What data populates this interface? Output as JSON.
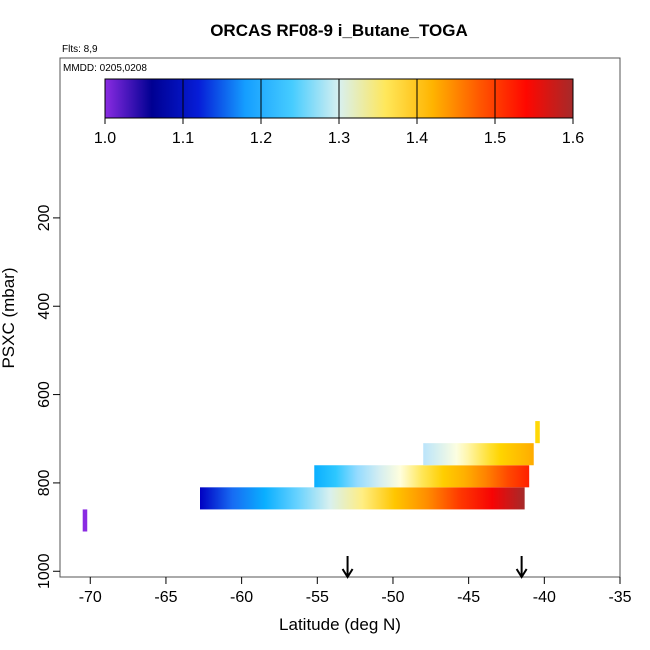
{
  "chart_data": {
    "type": "heatmap",
    "title": "ORCAS RF08-9 i_Butane_TOGA",
    "subtitle": "Flts: 8,9",
    "annotation": "MMDD: 0205,0208",
    "xlabel": "Latitude (deg N)",
    "ylabel": "PSXC (mbar)",
    "xlim": [
      -72,
      -35
    ],
    "ylim": [
      1013,
      -162
    ],
    "xticks": [
      -70,
      -65,
      -60,
      -55,
      -50,
      -45,
      -40,
      -35
    ],
    "yticks": [
      200,
      400,
      600,
      800,
      1000
    ],
    "colorbar": {
      "range": [
        1.0,
        1.6
      ],
      "ticks": [
        "1.0",
        "1.1",
        "1.2",
        "1.3",
        "1.4",
        "1.5",
        "1.6"
      ],
      "colors": [
        "#8a2be2",
        "#00008b",
        "#0000cd",
        "#1e90ff",
        "#00bfff",
        "#b0e0ff",
        "#ffffe0",
        "#ffd700",
        "#ffa500",
        "#ff4500",
        "#ff0000",
        "#a52a2a"
      ]
    },
    "segments": [
      {
        "lat": [
          -62.75,
          -41.3
        ],
        "p": [
          810,
          860
        ],
        "value_range": [
          1.1,
          1.6
        ]
      },
      {
        "lat": [
          -55.2,
          -41.0
        ],
        "p": [
          760,
          810
        ],
        "value_range": [
          1.2,
          1.52
        ]
      },
      {
        "lat": [
          -48.0,
          -40.7
        ],
        "p": [
          710,
          760
        ],
        "value_range": [
          1.28,
          1.43
        ]
      },
      {
        "lat": [
          -40.6,
          -40.3
        ],
        "p": [
          660,
          710
        ],
        "value_range": [
          1.38,
          1.38
        ]
      },
      {
        "lat": [
          -70.5,
          -70.2
        ],
        "p": [
          860,
          910
        ],
        "value_range": [
          1.0,
          1.0
        ]
      }
    ],
    "arrows_lat": [
      -53.0,
      -41.5
    ]
  }
}
